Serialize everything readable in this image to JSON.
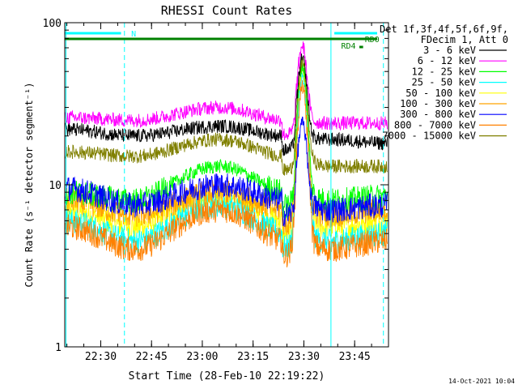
{
  "chart_data": {
    "type": "line",
    "title": "RHESSI Count Rates",
    "xlabel": "Start Time (28-Feb-10 22:19:22)",
    "ylabel": "Count Rate (s⁻¹ detector segment⁻¹)",
    "y_scale": "log",
    "ylim": [
      1,
      100
    ],
    "xlim": [
      "22:19:22",
      "23:55:00"
    ],
    "x_ticks": [
      "22:30",
      "22:45",
      "23:00",
      "23:15",
      "23:30",
      "23:45"
    ],
    "y_ticks": [
      "1",
      "10",
      "100"
    ],
    "grid": false,
    "legend": {
      "placement": "right",
      "header": [
        "Det 1f,3f,4f,5f,6f,9f,",
        "FDecim 1, Att 0"
      ]
    },
    "flare_peak_time": "23:29:30",
    "series": [
      {
        "name": "3 - 6 keV",
        "color": "#000000",
        "base": [
          22,
          20,
          23,
          20,
          19,
          18
        ],
        "peak": 60
      },
      {
        "name": "6 - 12 keV",
        "color": "#ff00ff",
        "base": [
          26,
          25,
          30,
          25,
          24,
          24
        ],
        "peak": 72
      },
      {
        "name": "12 - 25 keV",
        "color": "#00ff00",
        "base": [
          9,
          8,
          13,
          9,
          8,
          8.5
        ],
        "peak": 55
      },
      {
        "name": "25 - 50 keV",
        "color": "#00ffff",
        "base": [
          6,
          4.5,
          7.5,
          5,
          4.5,
          5
        ],
        "peak": 45
      },
      {
        "name": "50 - 100 keV",
        "color": "#ffff00",
        "base": [
          7,
          5.5,
          8.5,
          6,
          5.5,
          6
        ],
        "peak": 50
      },
      {
        "name": "100 - 300 keV",
        "color": "#ffa500",
        "base": [
          8,
          6.5,
          9,
          7,
          6.5,
          7
        ],
        "peak": 52
      },
      {
        "name": "300 - 800 keV",
        "color": "#0000ff",
        "base": [
          9.5,
          7.5,
          10,
          8,
          7,
          7.5
        ],
        "peak": 24
      },
      {
        "name": "800 - 7000 keV",
        "color": "#ff8000",
        "base": [
          5.5,
          4,
          7,
          4.5,
          4,
          4.5
        ],
        "peak": 40
      },
      {
        "name": "7000 - 15000 keV",
        "color": "#808000",
        "base": [
          16,
          15,
          19,
          15,
          13,
          13
        ],
        "peak": 58
      }
    ],
    "annotations": {
      "attenuator_label": "N",
      "rd_labels": [
        "RD0",
        "RD4"
      ],
      "timestamp": "14-Oct-2021 10:04"
    },
    "colors": {
      "frame": "#000000",
      "cyan_lines": "#00ffff",
      "green_bar": "#008000"
    }
  }
}
